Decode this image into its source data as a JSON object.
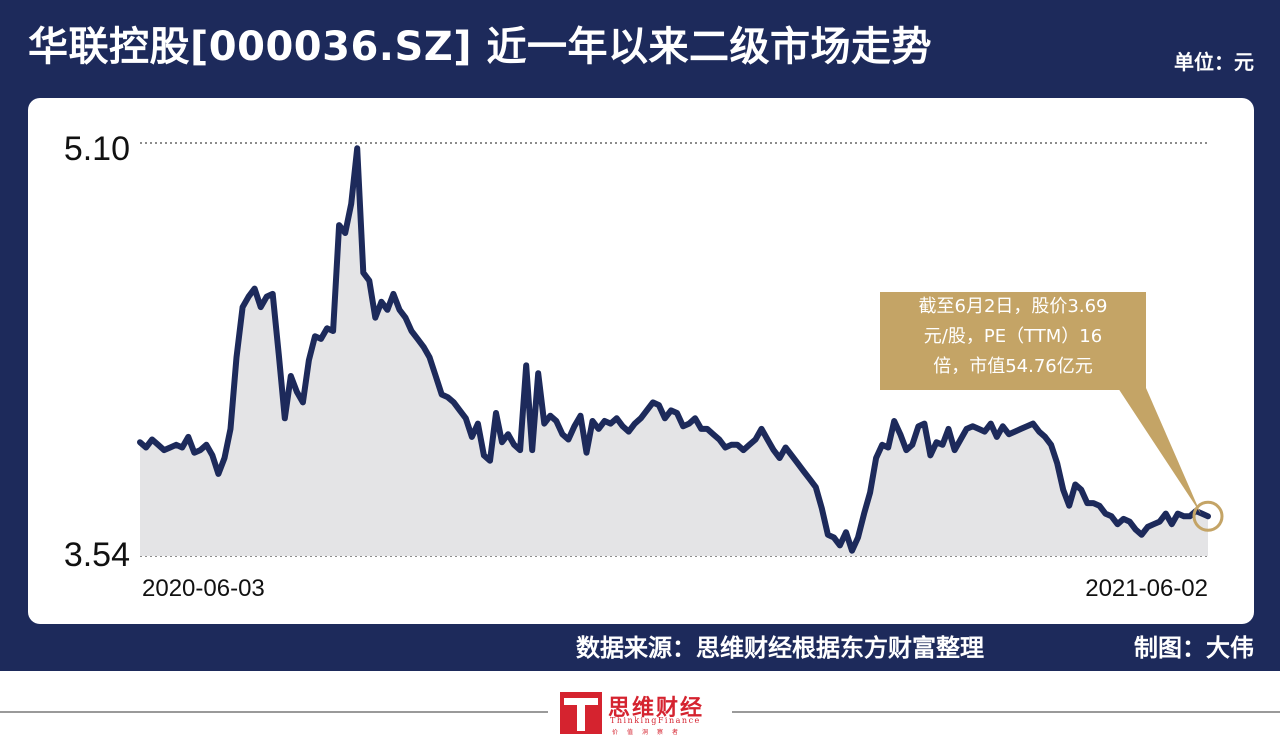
{
  "title": "华联控股[000036.SZ] 近一年以来二级市场走势",
  "unit": "单位：元",
  "callout": {
    "line1": "截至6月2日，股价3.69",
    "line2": "元/股，PE（TTM）16",
    "line3": "倍，市值54.76亿元"
  },
  "footer": {
    "source": "数据来源：思维财经根据东方财富整理",
    "author": "制图：大伟"
  },
  "logo": {
    "name": "思维财经",
    "english": "ThinkingFinance",
    "sub": "价值洞察者"
  },
  "colors": {
    "frame": "#1d2a5b",
    "line": "#1d2a5b",
    "area": "#e4e4e6",
    "callout": "#c4a466",
    "logo": "#d5232f"
  },
  "chart_data": {
    "type": "area",
    "ylim": [
      3.54,
      5.1
    ],
    "y_ticks": [
      "5.10",
      "3.54"
    ],
    "x_labels": [
      "2020-06-03",
      "2021-06-02"
    ],
    "x_start": "2020-06-03",
    "x_end": "2021-06-02",
    "grid": "dotted lines at 5.10 and 3.54",
    "series": [
      {
        "values": [
          3.97,
          3.95,
          3.98,
          3.96,
          3.94,
          3.95,
          3.96,
          3.95,
          3.99,
          3.93,
          3.94,
          3.96,
          3.92,
          3.85,
          3.91,
          4.02,
          4.29,
          4.48,
          4.52,
          4.55,
          4.48,
          4.52,
          4.53,
          4.3,
          4.06,
          4.22,
          4.16,
          4.12,
          4.28,
          4.37,
          4.36,
          4.4,
          4.39,
          4.79,
          4.76,
          4.87,
          5.08,
          4.61,
          4.58,
          4.44,
          4.5,
          4.47,
          4.53,
          4.47,
          4.44,
          4.39,
          4.36,
          4.33,
          4.29,
          4.22,
          4.15,
          4.14,
          4.12,
          4.09,
          4.06,
          3.99,
          4.04,
          3.92,
          3.9,
          4.08,
          3.97,
          4.0,
          3.96,
          3.94,
          4.26,
          3.94,
          4.23,
          4.04,
          4.07,
          4.05,
          4.0,
          3.98,
          4.03,
          4.07,
          3.93,
          4.05,
          4.02,
          4.05,
          4.04,
          4.06,
          4.03,
          4.01,
          4.04,
          4.06,
          4.09,
          4.12,
          4.11,
          4.06,
          4.09,
          4.08,
          4.03,
          4.04,
          4.06,
          4.02,
          4.02,
          4.0,
          3.98,
          3.95,
          3.96,
          3.96,
          3.94,
          3.96,
          3.98,
          4.02,
          3.98,
          3.94,
          3.91,
          3.95,
          3.92,
          3.89,
          3.86,
          3.83,
          3.8,
          3.72,
          3.62,
          3.61,
          3.58,
          3.63,
          3.56,
          3.61,
          3.7,
          3.78,
          3.91,
          3.96,
          3.95,
          4.05,
          4.0,
          3.94,
          3.96,
          4.03,
          4.04,
          3.92,
          3.97,
          3.96,
          4.02,
          3.94,
          3.98,
          4.02,
          4.03,
          4.02,
          4.01,
          4.04,
          3.99,
          4.03,
          4.0,
          4.01,
          4.02,
          4.03,
          4.04,
          4.01,
          3.99,
          3.96,
          3.89,
          3.79,
          3.73,
          3.81,
          3.79,
          3.74,
          3.74,
          3.73,
          3.7,
          3.69,
          3.66,
          3.68,
          3.67,
          3.64,
          3.62,
          3.65,
          3.66,
          3.67,
          3.7,
          3.66,
          3.7,
          3.69,
          3.69,
          3.71,
          3.7,
          3.69
        ]
      }
    ]
  }
}
